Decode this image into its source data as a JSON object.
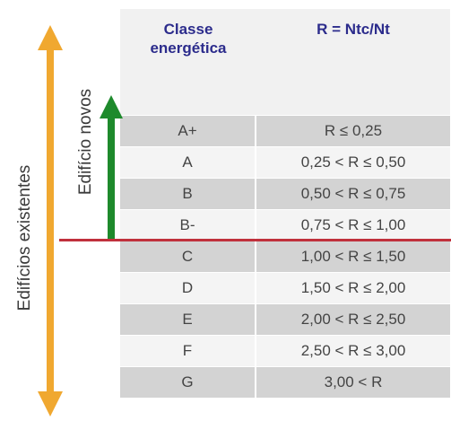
{
  "table": {
    "header": {
      "class_line1": "Classe",
      "class_line2": "energética",
      "ratio": "R = Ntc/Nt"
    },
    "rows": [
      {
        "class": "A+",
        "range": "R ≤ 0,25"
      },
      {
        "class": "A",
        "range": "0,25 < R ≤ 0,50"
      },
      {
        "class": "B",
        "range": "0,50 < R ≤ 0,75"
      },
      {
        "class": "B-",
        "range": "0,75 < R ≤ 1,00"
      },
      {
        "class": "C",
        "range": "1,00 < R ≤ 1,50"
      },
      {
        "class": "D",
        "range": "1,50 < R ≤ 2,00"
      },
      {
        "class": "E",
        "range": "2,00 < R ≤ 2,50"
      },
      {
        "class": "F",
        "range": "2,50 < R ≤ 3,00"
      },
      {
        "class": "G",
        "range": "3,00 < R"
      }
    ]
  },
  "annotations": {
    "existing_buildings": "Edifícios existentes",
    "new_buildings": "Edifício novos"
  },
  "colors": {
    "header_text": "#2c2c8c",
    "existing_arrow": "#f0a830",
    "new_arrow": "#1e8a2c",
    "boundary_line": "#c0303c",
    "row_shade": "#d3d3d3",
    "row_plain": "#f4f4f4"
  }
}
